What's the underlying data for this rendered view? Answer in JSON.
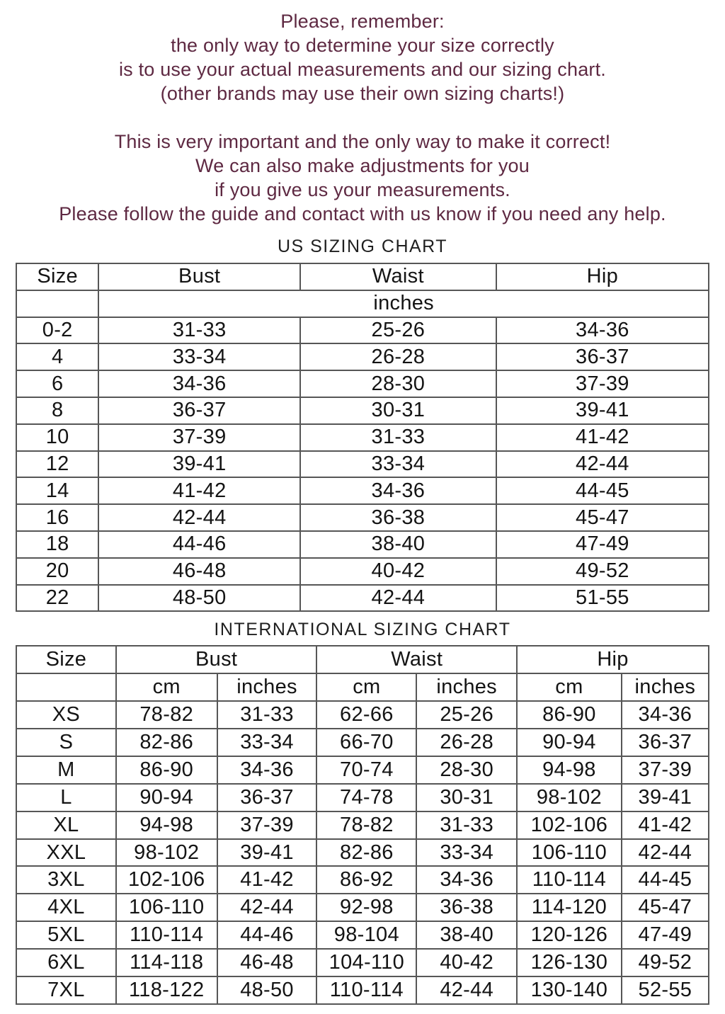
{
  "intro": {
    "p1_lines": [
      "Please, remember:",
      "the only way to determine your size correctly",
      "is to use your actual measurements and our sizing chart.",
      "(other brands may use their own sizing charts!)"
    ],
    "p2_lines": [
      "This is very important and the only way to make it correct!",
      "We can also make adjustments for you",
      "if you give us your measurements.",
      "Please follow the guide and contact with us know if you need any help."
    ]
  },
  "us_chart": {
    "title": "US SIZING CHART",
    "columns": [
      "Size",
      "Bust",
      "Waist",
      "Hip"
    ],
    "unit_label": "inches",
    "rows": [
      [
        "0-2",
        "31-33",
        "25-26",
        "34-36"
      ],
      [
        "4",
        "33-34",
        "26-28",
        "36-37"
      ],
      [
        "6",
        "34-36",
        "28-30",
        "37-39"
      ],
      [
        "8",
        "36-37",
        "30-31",
        "39-41"
      ],
      [
        "10",
        "37-39",
        "31-33",
        "41-42"
      ],
      [
        "12",
        "39-41",
        "33-34",
        "42-44"
      ],
      [
        "14",
        "41-42",
        "34-36",
        "44-45"
      ],
      [
        "16",
        "42-44",
        "36-38",
        "45-47"
      ],
      [
        "18",
        "44-46",
        "38-40",
        "47-49"
      ],
      [
        "20",
        "46-48",
        "40-42",
        "49-52"
      ],
      [
        "22",
        "48-50",
        "42-44",
        "51-55"
      ]
    ]
  },
  "intl_chart": {
    "title": "INTERNATIONAL SIZING CHART",
    "columns": [
      "Size",
      "Bust",
      "Waist",
      "Hip"
    ],
    "sub_columns": [
      "cm",
      "inches",
      "cm",
      "inches",
      "cm",
      "inches"
    ],
    "rows": [
      [
        "XS",
        "78-82",
        "31-33",
        "62-66",
        "25-26",
        "86-90",
        "34-36"
      ],
      [
        "S",
        "82-86",
        "33-34",
        "66-70",
        "26-28",
        "90-94",
        "36-37"
      ],
      [
        "M",
        "86-90",
        "34-36",
        "70-74",
        "28-30",
        "94-98",
        "37-39"
      ],
      [
        "L",
        "90-94",
        "36-37",
        "74-78",
        "30-31",
        "98-102",
        "39-41"
      ],
      [
        "XL",
        "94-98",
        "37-39",
        "78-82",
        "31-33",
        "102-106",
        "41-42"
      ],
      [
        "XXL",
        "98-102",
        "39-41",
        "82-86",
        "33-34",
        "106-110",
        "42-44"
      ],
      [
        "3XL",
        "102-106",
        "41-42",
        "86-92",
        "34-36",
        "110-114",
        "44-45"
      ],
      [
        "4XL",
        "106-110",
        "42-44",
        "92-98",
        "36-38",
        "114-120",
        "45-47"
      ],
      [
        "5XL",
        "110-114",
        "44-46",
        "98-104",
        "38-40",
        "120-126",
        "47-49"
      ],
      [
        "6XL",
        "114-118",
        "46-48",
        "104-110",
        "40-42",
        "126-130",
        "49-52"
      ],
      [
        "7XL",
        "118-122",
        "48-50",
        "110-114",
        "42-44",
        "130-140",
        "52-55"
      ]
    ]
  },
  "colors": {
    "intro_text": "#5e2942",
    "table_text": "#141414",
    "table_border": "#565656",
    "background": "#ffffff"
  }
}
